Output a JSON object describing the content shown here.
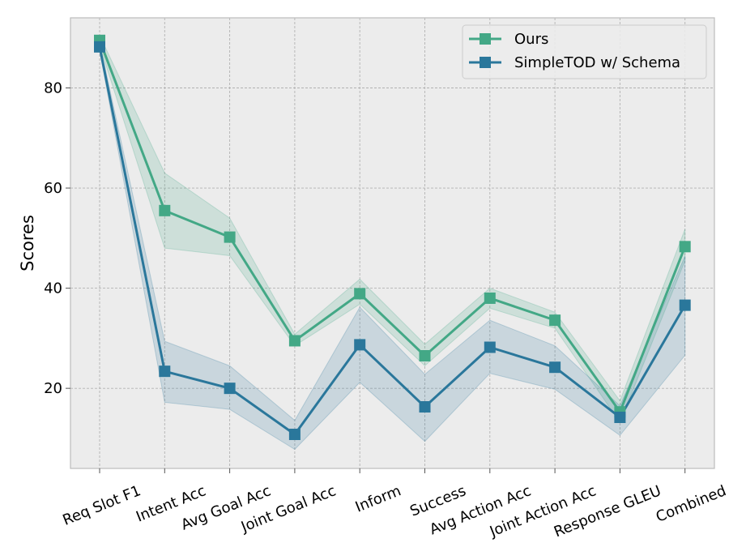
{
  "chart_data": {
    "type": "line",
    "title": "",
    "xlabel": "",
    "ylabel": "Scores",
    "ylim": [
      4,
      94
    ],
    "yticks": [
      20,
      40,
      60,
      80
    ],
    "grid": true,
    "legend_position": "top-right",
    "categories": [
      "Req Slot F1",
      "Intent Acc",
      "Avg Goal Acc",
      "Joint Goal Acc",
      "Inform",
      "Success",
      "Avg Action Acc",
      "Joint Action Acc",
      "Response GLEU",
      "Combined"
    ],
    "series": [
      {
        "name": "Ours",
        "color": "#43a886",
        "values": [
          89.5,
          55.5,
          50.2,
          29.5,
          38.9,
          26.5,
          38.0,
          33.6,
          15.3,
          48.3
        ],
        "band_lower": [
          88.5,
          48.0,
          46.5,
          28.5,
          36.8,
          24.5,
          36.0,
          32.0,
          13.2,
          45.5
        ],
        "band_upper": [
          90.5,
          63.0,
          54.0,
          30.8,
          41.8,
          28.8,
          40.0,
          35.2,
          17.5,
          51.8
        ]
      },
      {
        "name": "SimpleTOD w/ Schema",
        "color": "#2a779b",
        "values": [
          88.2,
          23.4,
          20.0,
          10.8,
          28.7,
          16.3,
          28.2,
          24.2,
          14.2,
          36.6
        ],
        "band_lower": [
          87.5,
          17.2,
          15.8,
          7.8,
          21.2,
          9.4,
          23.0,
          19.8,
          10.6,
          26.6
        ],
        "band_upper": [
          89.0,
          29.4,
          24.5,
          13.6,
          36.2,
          22.8,
          33.6,
          28.5,
          16.5,
          46.4
        ]
      }
    ]
  }
}
